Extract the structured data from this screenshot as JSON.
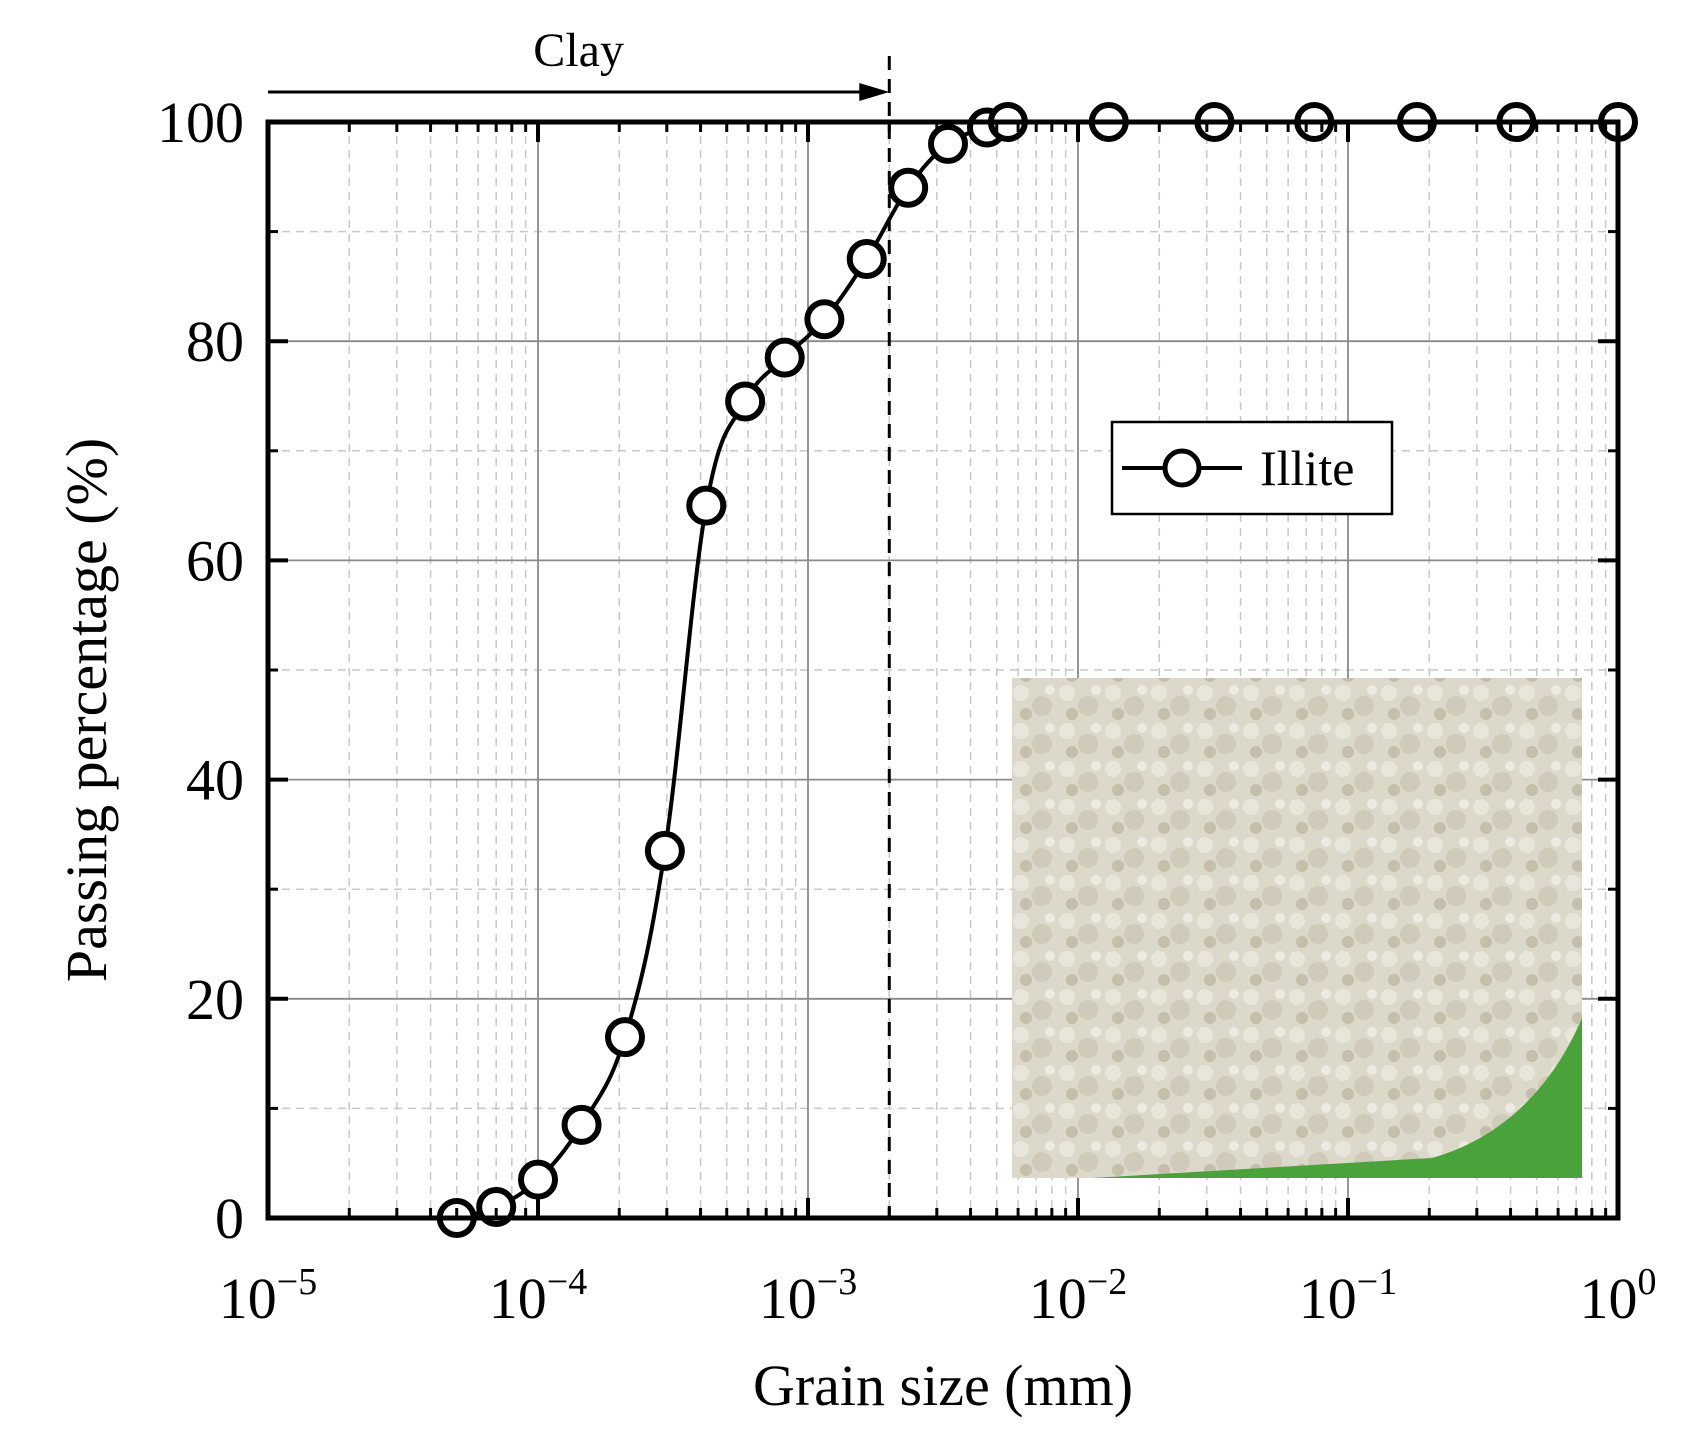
{
  "chart_data": {
    "type": "line",
    "title": "",
    "xlabel": "Grain size (mm)",
    "ylabel": "Passing percentage (%)",
    "x_scale": "log",
    "xlim": [
      1e-05,
      1
    ],
    "ylim": [
      0,
      100
    ],
    "grid": true,
    "legend_position": "upper-right",
    "x_ticks": [
      {
        "value": 1e-05,
        "base": "10",
        "exp": "−5"
      },
      {
        "value": 0.0001,
        "base": "10",
        "exp": "−4"
      },
      {
        "value": 0.001,
        "base": "10",
        "exp": "−3"
      },
      {
        "value": 0.01,
        "base": "10",
        "exp": "−2"
      },
      {
        "value": 0.1,
        "base": "10",
        "exp": "−1"
      },
      {
        "value": 1,
        "base": "10",
        "exp": "0"
      }
    ],
    "y_ticks": [
      "0",
      "20",
      "40",
      "60",
      "80",
      "100"
    ],
    "series": [
      {
        "name": "Illite",
        "color": "#000000",
        "marker": "open-circle",
        "x": [
          5e-05,
          7e-05,
          0.0001,
          0.000145,
          0.00021,
          0.000295,
          0.00042,
          0.000585,
          0.00082,
          0.00115,
          0.00165,
          0.00235,
          0.0033,
          0.0046,
          0.0055,
          0.013,
          0.032,
          0.075,
          0.18,
          0.42,
          1.0
        ],
        "y": [
          0,
          1,
          3.5,
          8.5,
          16.5,
          33.5,
          65,
          74.5,
          78.5,
          82,
          87.5,
          94,
          98,
          99.5,
          100,
          100,
          100,
          100,
          100,
          100,
          100
        ]
      }
    ],
    "annotations": {
      "clay_label": "Clay",
      "clay_boundary_x": 0.002
    }
  }
}
